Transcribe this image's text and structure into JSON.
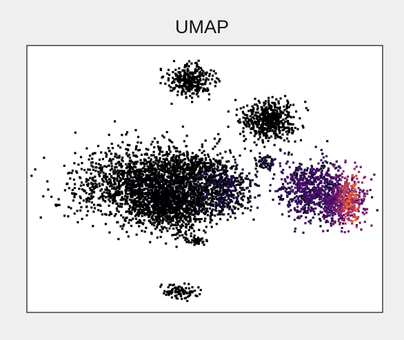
{
  "chart_data": {
    "type": "scatter",
    "title": "UMAP",
    "xlabel": "",
    "ylabel": "",
    "axes_ticks": false,
    "grid": false,
    "legend": false,
    "colormap": [
      "#000004",
      "#1b0c41",
      "#4a0c6b",
      "#781c6d",
      "#a52c60",
      "#cf4446",
      "#ed6925",
      "#fb9b06",
      "#f7d13d"
    ],
    "background": "#ffffff",
    "frame_color": "#222222",
    "xlim": [
      0,
      100
    ],
    "ylim": [
      0,
      100
    ],
    "clusters": [
      {
        "id": "main-left",
        "points": 1900,
        "center": [
          35,
          48
        ],
        "spread": [
          14,
          9
        ],
        "expression": 0.02
      },
      {
        "id": "main-center",
        "points": 900,
        "center": [
          41,
          40
        ],
        "spread": [
          7,
          6
        ],
        "expression": 0.03
      },
      {
        "id": "left-arm",
        "points": 250,
        "center": [
          45,
          55
        ],
        "spread": [
          8,
          4
        ],
        "expression": 0.02
      },
      {
        "id": "mid-right-arm",
        "points": 420,
        "center": [
          55,
          46
        ],
        "spread": [
          5,
          6
        ],
        "expression": 0.05
      },
      {
        "id": "top-small",
        "points": 330,
        "center": [
          46,
          87
        ],
        "spread": [
          4,
          4
        ],
        "expression": 0.02
      },
      {
        "id": "top-right",
        "points": 520,
        "center": [
          68,
          72
        ],
        "spread": [
          5,
          5
        ],
        "expression": 0.02
      },
      {
        "id": "bridge-small",
        "points": 60,
        "center": [
          67,
          56
        ],
        "spread": [
          2,
          2
        ],
        "expression": 0.05
      },
      {
        "id": "right-cluster-outer",
        "points": 650,
        "center": [
          80,
          46
        ],
        "spread": [
          6,
          7
        ],
        "expression": 0.15
      },
      {
        "id": "right-cluster-hot",
        "points": 550,
        "center": [
          89,
          42
        ],
        "spread": [
          4,
          6
        ],
        "expression": 0.55
      },
      {
        "id": "bottom-small",
        "points": 90,
        "center": [
          43,
          8
        ],
        "spread": [
          3,
          2
        ],
        "expression": 0.02
      },
      {
        "id": "lower-tail",
        "points": 40,
        "center": [
          48,
          27
        ],
        "spread": [
          2,
          1
        ],
        "expression": 0.02
      }
    ]
  }
}
